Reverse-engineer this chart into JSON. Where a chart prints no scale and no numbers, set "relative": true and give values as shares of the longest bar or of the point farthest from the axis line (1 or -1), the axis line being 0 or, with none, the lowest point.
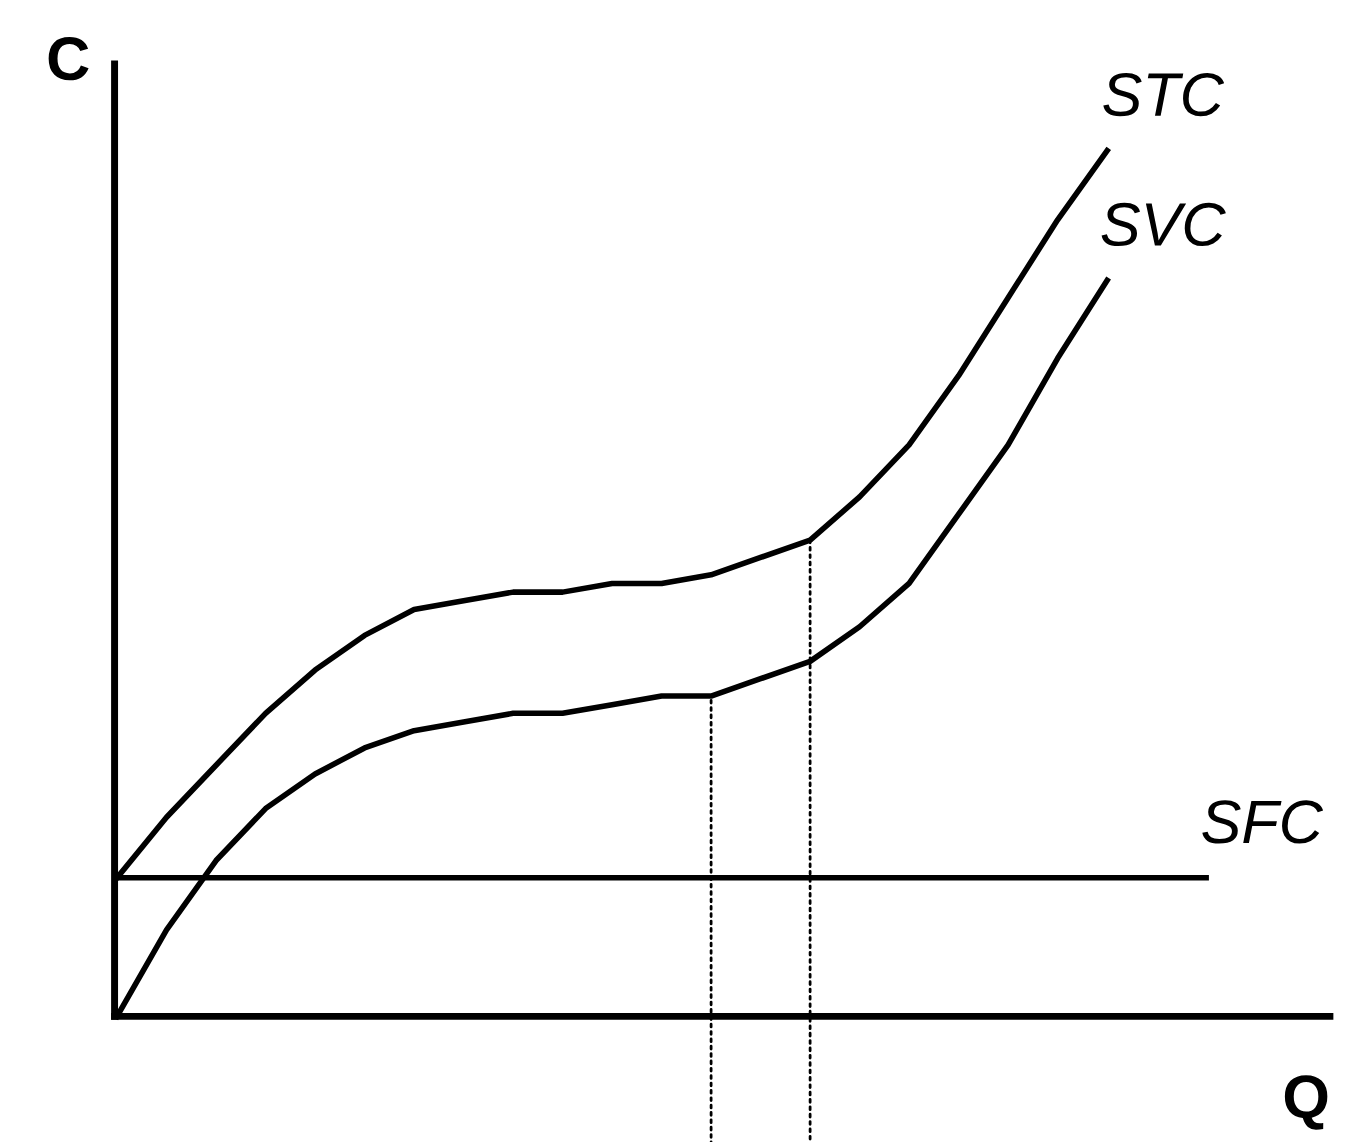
{
  "chart_data": {
    "type": "line",
    "relative": true,
    "xlabel": "Q",
    "ylabel": "C",
    "categories": [
      null,
      null,
      null,
      null,
      null,
      null,
      null,
      null,
      null,
      null,
      null,
      null,
      null,
      null,
      null,
      null,
      null,
      null,
      null,
      null,
      null,
      null,
      null
    ],
    "series": [
      {
        "name": "STC",
        "color": "#000000",
        "values": [
          0.16,
          0.23,
          0.29,
          0.35,
          0.4,
          0.44,
          0.47,
          0.48,
          0.49,
          0.49,
          0.5,
          0.5,
          0.51,
          0.53,
          0.55,
          0.6,
          0.66,
          0.74,
          0.83,
          0.92,
          1.0,
          null,
          null
        ]
      },
      {
        "name": "SVC",
        "color": "#000000",
        "values": [
          0.0,
          0.1,
          0.18,
          0.24,
          0.28,
          0.31,
          0.33,
          0.34,
          0.35,
          0.35,
          0.36,
          0.37,
          0.37,
          0.39,
          0.41,
          0.45,
          0.5,
          0.58,
          0.66,
          0.76,
          0.85,
          null,
          null
        ]
      },
      {
        "name": "SFC",
        "color": "#000000",
        "values": [
          0.16,
          0.16,
          0.16,
          0.16,
          0.16,
          0.16,
          0.16,
          0.16,
          0.16,
          0.16,
          0.16,
          0.16,
          0.16,
          0.16,
          0.16,
          0.16,
          0.16,
          0.16,
          0.16,
          0.16,
          0.16,
          0.16,
          0.16
        ]
      }
    ]
  }
}
